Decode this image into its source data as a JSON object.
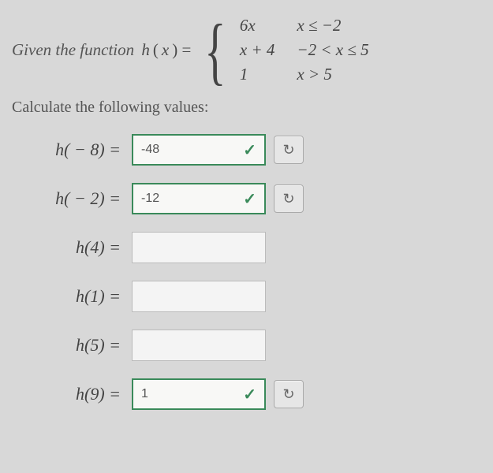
{
  "prompt": "Given the function",
  "func_name": "h",
  "func_var": "x",
  "equals": "=",
  "piecewise": {
    "r1_expr": "6x",
    "r1_cond": "x ≤ −2",
    "r2_expr": "x + 4",
    "r2_cond": "−2 < x ≤ 5",
    "r3_expr": "1",
    "r3_cond": "x > 5"
  },
  "subheading": "Calculate the following values:",
  "rows": [
    {
      "lhs": "h( − 8) =",
      "value": "-48",
      "correct": true,
      "has_retry": true
    },
    {
      "lhs": "h( − 2) =",
      "value": "-12",
      "correct": true,
      "has_retry": true
    },
    {
      "lhs": "h(4) =",
      "value": "",
      "correct": false,
      "has_retry": false
    },
    {
      "lhs": "h(1) =",
      "value": "",
      "correct": false,
      "has_retry": false
    },
    {
      "lhs": "h(5) =",
      "value": "",
      "correct": false,
      "has_retry": false
    },
    {
      "lhs": "h(9) =",
      "value": "1",
      "correct": true,
      "has_retry": true
    }
  ],
  "icons": {
    "check": "✓",
    "retry": "↻"
  },
  "colors": {
    "page_bg": "#d8d8d8",
    "text": "#4a4a4a",
    "correct_border": "#3a8a5a",
    "input_bg": "#f4f4f4",
    "input_border": "#bbbbbb",
    "btn_bg": "#e6e6e6",
    "btn_border": "#aaaaaa"
  }
}
